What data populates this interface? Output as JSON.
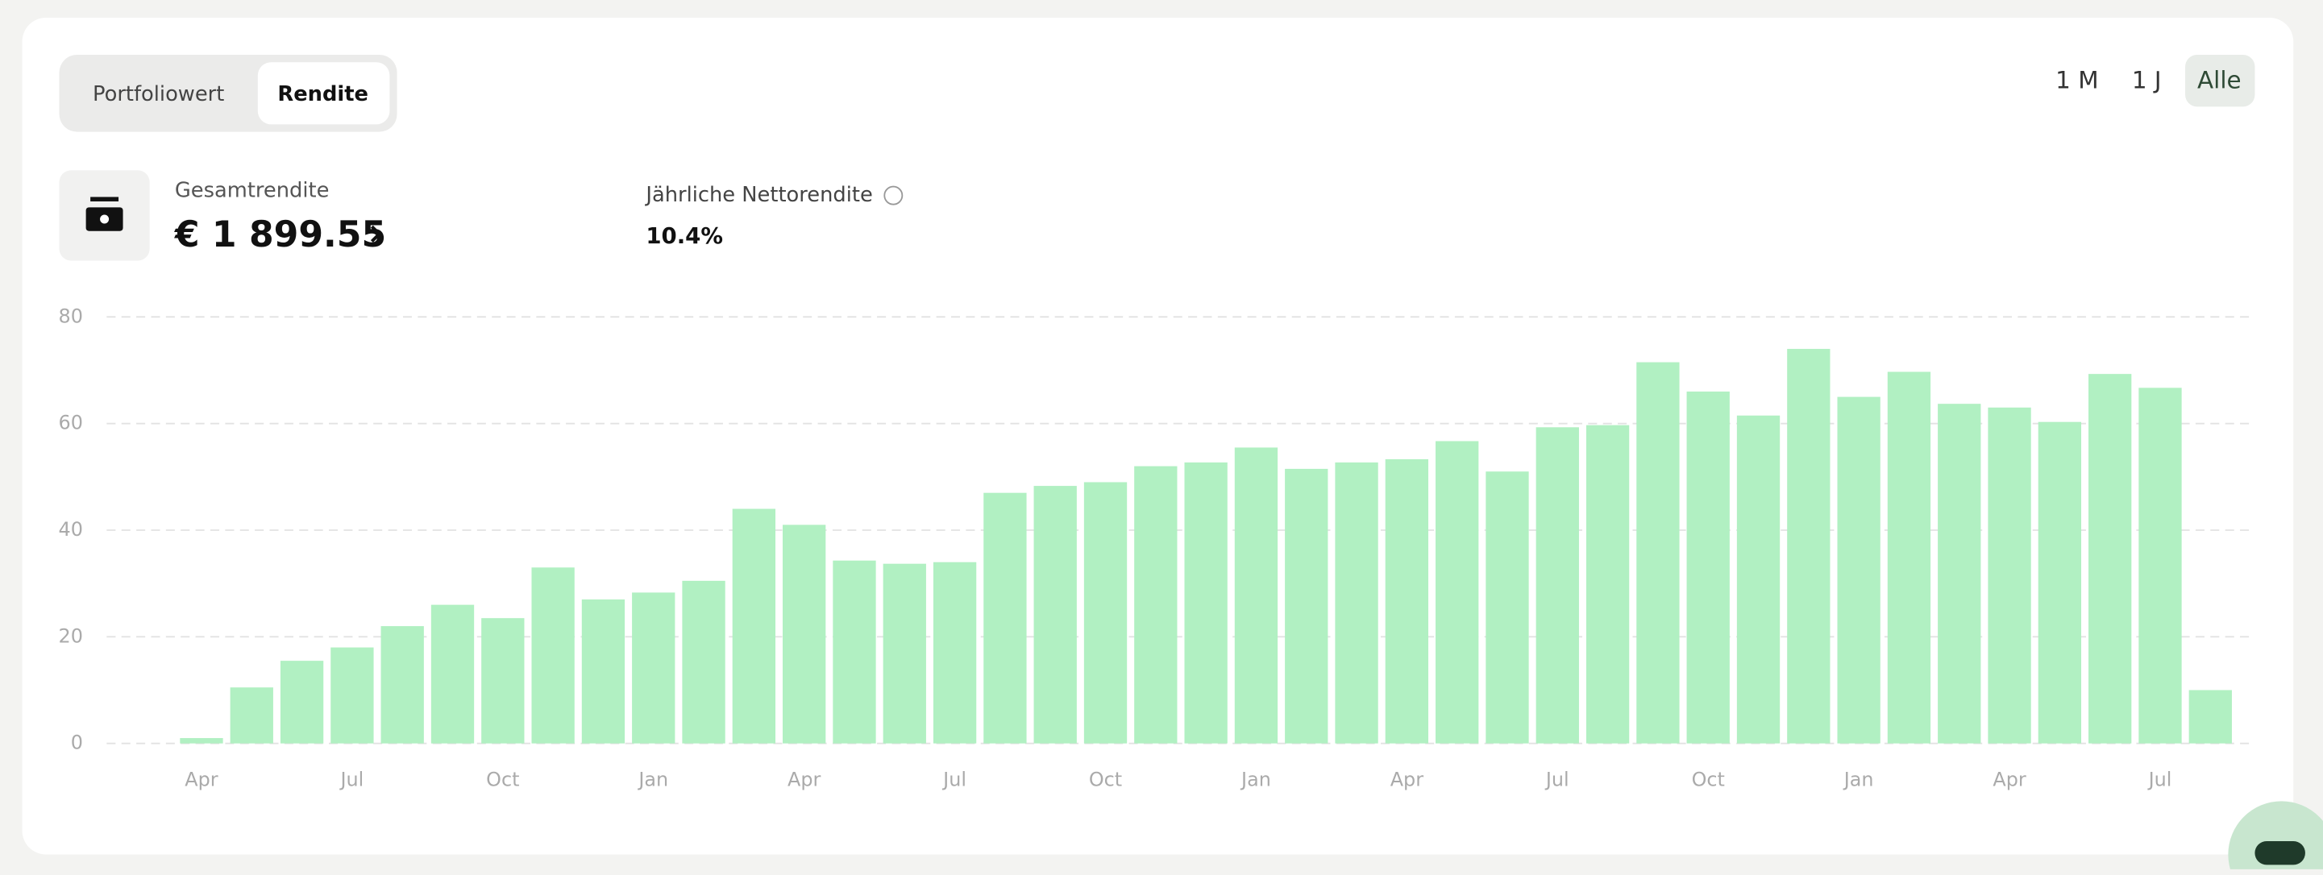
{
  "ui": {
    "tabs": [
      "Portfoliowert",
      "Rendite"
    ],
    "ranges": [
      "1 M",
      "1 J",
      "Alle"
    ],
    "total_label": "Gesamtrendite",
    "total_value": "€ 1 899.55",
    "annual_label": "Jährliche Nettorendite",
    "annual_value": "10.4%"
  },
  "chart_data": {
    "type": "bar",
    "categories": [
      "Apr",
      null,
      null,
      "Jul",
      null,
      null,
      "Oct",
      null,
      null,
      "Jan",
      null,
      null,
      "Apr",
      null,
      null,
      "Jul",
      null,
      null,
      "Oct",
      null,
      null,
      "Jan",
      null,
      null,
      "Apr",
      null,
      null,
      "Jul",
      null,
      null,
      "Oct",
      null,
      null,
      "Jan",
      null,
      null,
      "Apr",
      null,
      null,
      "Jul",
      null
    ],
    "values": [
      1,
      10.5,
      15.5,
      18,
      22,
      26,
      23.5,
      33,
      27,
      28.3,
      30.5,
      44,
      41,
      34.3,
      33.7,
      34,
      47,
      48.3,
      49,
      52,
      52.7,
      55.5,
      51.5,
      52.7,
      53.3,
      56.7,
      51,
      59.3,
      59.7,
      71.5,
      66,
      61.5,
      74,
      65,
      69.7,
      63.7,
      63,
      60.3,
      69.3,
      66.7,
      10
    ],
    "color": "#b1f0c2",
    "ylim": [
      0,
      80
    ],
    "yticks": [
      0,
      20,
      40,
      60,
      80
    ],
    "grid": true
  }
}
